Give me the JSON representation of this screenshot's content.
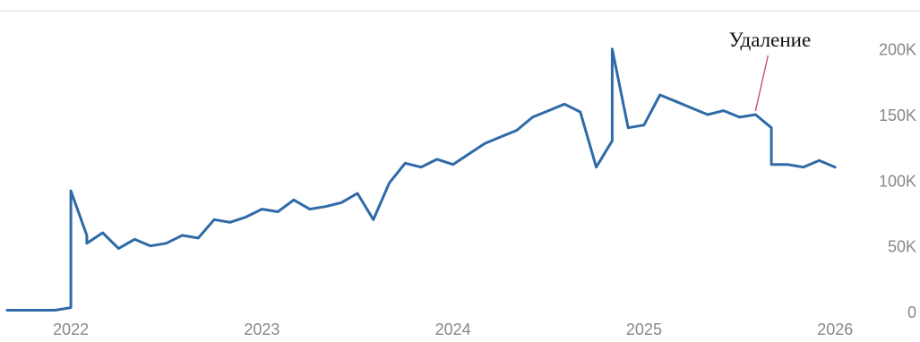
{
  "chart_data": {
    "type": "line",
    "x_ticks": [
      "2022",
      "2023",
      "2024",
      "2025",
      "2026"
    ],
    "y_ticks": [
      "0",
      "50K",
      "100K",
      "150K",
      "200K"
    ],
    "xlim": [
      "2021-09",
      "2026-02"
    ],
    "ylim": [
      0,
      210000
    ],
    "y_axis_position": "right",
    "grid": false,
    "line_color": "#2f6aa8",
    "annotation": {
      "text": "Удаление",
      "x": "2025-08",
      "y": 150000
    },
    "series": [
      {
        "x": [
          "2021-09",
          "2021-10",
          "2021-11",
          "2021-12",
          "2022-01",
          "2022-01",
          "2022-01",
          "2022-02",
          "2022-02",
          "2022-03",
          "2022-04",
          "2022-05",
          "2022-06",
          "2022-07",
          "2022-08",
          "2022-09",
          "2022-10",
          "2022-11",
          "2022-12",
          "2023-01",
          "2023-02",
          "2023-03",
          "2023-04",
          "2023-05",
          "2023-06",
          "2023-07",
          "2023-08",
          "2023-09",
          "2023-10",
          "2023-11",
          "2023-12",
          "2024-01",
          "2024-02",
          "2024-03",
          "2024-04",
          "2024-05",
          "2024-06",
          "2024-07",
          "2024-08",
          "2024-09",
          "2024-10",
          "2024-11",
          "2024-11",
          "2024-12",
          "2025-01",
          "2025-02",
          "2025-03",
          "2025-04",
          "2025-05",
          "2025-06",
          "2025-07",
          "2025-08",
          "2025-09",
          "2025-09",
          "2025-10",
          "2025-11",
          "2025-12",
          "2026-01"
        ],
        "y": [
          1000,
          1000,
          1000,
          1000,
          3000,
          10000,
          92000,
          58000,
          52000,
          60000,
          48000,
          55000,
          50000,
          52000,
          58000,
          56000,
          70000,
          68000,
          72000,
          78000,
          76000,
          85000,
          78000,
          80000,
          83000,
          90000,
          70000,
          98000,
          113000,
          110000,
          116000,
          112000,
          120000,
          128000,
          133000,
          138000,
          148000,
          153000,
          158000,
          152000,
          110000,
          130000,
          200000,
          140000,
          142000,
          165000,
          160000,
          155000,
          150000,
          153000,
          148000,
          150000,
          140000,
          112000,
          112000,
          110000,
          115000,
          110000
        ]
      }
    ]
  }
}
